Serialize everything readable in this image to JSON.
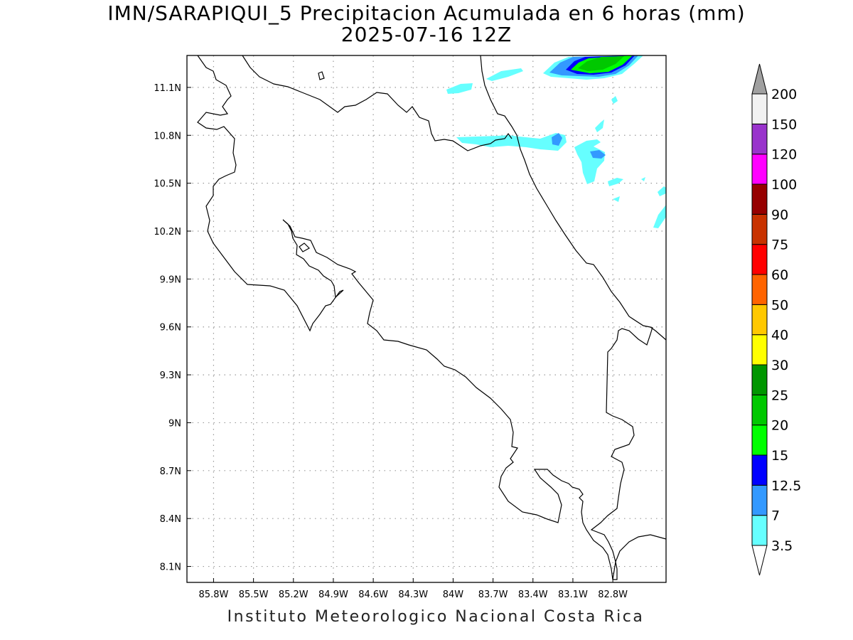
{
  "title": {
    "line1": "IMN/SARAPIQUI_5 Precipitacion Acumulada en 6 horas (mm)",
    "line2": "2025-07-16 12Z"
  },
  "footer": "Instituto Meteorologico Nacional Costa Rica",
  "map": {
    "lon_range": [
      -86.0,
      -82.4
    ],
    "lat_range": [
      8.0,
      11.3
    ],
    "x_ticks": [
      "85.8W",
      "85.5W",
      "85.2W",
      "84.9W",
      "84.6W",
      "84.3W",
      "84W",
      "83.7W",
      "83.4W",
      "83.1W",
      "82.8W"
    ],
    "y_ticks": [
      "11.1N",
      "10.8N",
      "10.5N",
      "10.2N",
      "9.9N",
      "9.6N",
      "9.3N",
      "9N",
      "8.7N",
      "8.4N",
      "8.1N"
    ],
    "grid": "dotted",
    "coastline_color": "#000000"
  },
  "colorbar": {
    "levels": [
      "3.5",
      "7",
      "12.5",
      "15",
      "20",
      "25",
      "30",
      "40",
      "50",
      "60",
      "75",
      "90",
      "100",
      "120",
      "150",
      "200"
    ],
    "colors": [
      "#66ffff",
      "#3399ff",
      "#0000ff",
      "#00ff00",
      "#00c800",
      "#009600",
      "#ffff00",
      "#ffc800",
      "#ff6400",
      "#ff0000",
      "#c83200",
      "#960000",
      "#ff00ff",
      "#9933cc",
      "#f2f2f2"
    ],
    "over_color": "#a0a0a0",
    "under_color": "#ffffff"
  }
}
